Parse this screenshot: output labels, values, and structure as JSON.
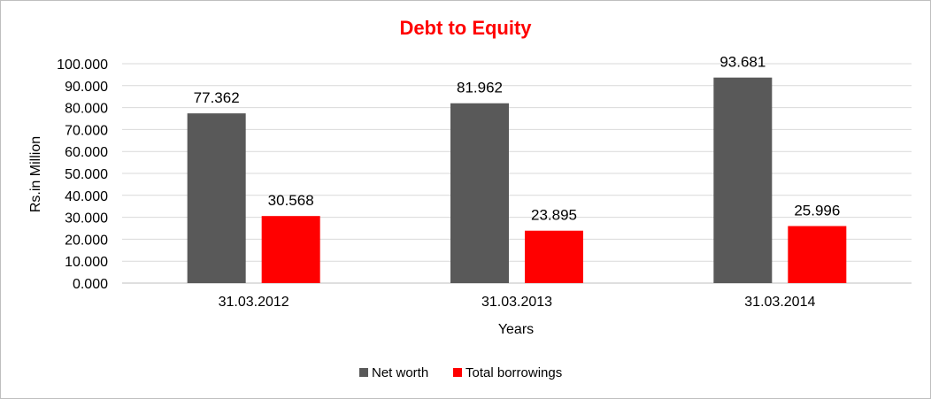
{
  "chart_data": {
    "type": "bar",
    "title": "Debt to Equity",
    "xlabel": "Years",
    "ylabel": "Rs.in Million",
    "categories": [
      "31.03.2012",
      "31.03.2013",
      "31.03.2014"
    ],
    "series": [
      {
        "name": "Net worth",
        "color": "#595959",
        "values": [
          77.362,
          81.962,
          93.681
        ],
        "labels": [
          "77.362",
          "81.962",
          "93.681"
        ]
      },
      {
        "name": "Total borrowings",
        "color": "#ff0000",
        "values": [
          30.568,
          23.895,
          25.996
        ],
        "labels": [
          "30.568",
          "23.895",
          "25.996"
        ]
      }
    ],
    "ylim": [
      0,
      100
    ],
    "yticks": [
      "0.000",
      "10.000",
      "20.000",
      "30.000",
      "40.000",
      "50.000",
      "60.000",
      "70.000",
      "80.000",
      "90.000",
      "100.000"
    ],
    "grid": true,
    "legend": "bottom",
    "colors": {
      "grid": "#d9d9d9",
      "title": "#ff0000"
    }
  }
}
